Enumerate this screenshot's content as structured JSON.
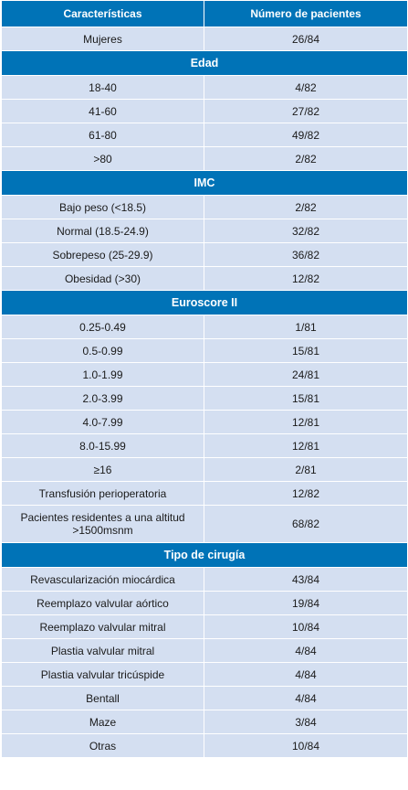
{
  "header": {
    "col1": "Características",
    "col2": "Número de pacientes"
  },
  "rows": [
    {
      "type": "row",
      "label": "Mujeres",
      "value": "26/84"
    },
    {
      "type": "section",
      "label": "Edad"
    },
    {
      "type": "row",
      "label": "18-40",
      "value": "4/82"
    },
    {
      "type": "row",
      "label": "41-60",
      "value": "27/82"
    },
    {
      "type": "row",
      "label": "61-80",
      "value": "49/82"
    },
    {
      "type": "row",
      "label": ">80",
      "value": "2/82"
    },
    {
      "type": "section",
      "label": "IMC"
    },
    {
      "type": "row",
      "label": "Bajo peso (<18.5)",
      "value": "2/82"
    },
    {
      "type": "row",
      "label": "Normal (18.5-24.9)",
      "value": "32/82"
    },
    {
      "type": "row",
      "label": "Sobrepeso (25-29.9)",
      "value": "36/82"
    },
    {
      "type": "row",
      "label": "Obesidad (>30)",
      "value": "12/82"
    },
    {
      "type": "section",
      "label": "Euroscore II"
    },
    {
      "type": "row",
      "label": "0.25-0.49",
      "value": "1/81"
    },
    {
      "type": "row",
      "label": "0.5-0.99",
      "value": "15/81"
    },
    {
      "type": "row",
      "label": "1.0-1.99",
      "value": "24/81"
    },
    {
      "type": "row",
      "label": "2.0-3.99",
      "value": "15/81"
    },
    {
      "type": "row",
      "label": "4.0-7.99",
      "value": "12/81"
    },
    {
      "type": "row",
      "label": "8.0-15.99",
      "value": "12/81"
    },
    {
      "type": "row",
      "label": "≥16",
      "value": "2/81"
    },
    {
      "type": "row",
      "label": "Transfusión perioperatoria",
      "value": "12/82"
    },
    {
      "type": "row",
      "label": "Pacientes residentes a una altitud >1500msnm",
      "value": "68/82",
      "tall": true
    },
    {
      "type": "section",
      "label": "Tipo de cirugía"
    },
    {
      "type": "row",
      "label": "Revascularización miocárdica",
      "value": "43/84"
    },
    {
      "type": "row",
      "label": "Reemplazo valvular aórtico",
      "value": "19/84"
    },
    {
      "type": "row",
      "label": "Reemplazo valvular mitral",
      "value": "10/84"
    },
    {
      "type": "row",
      "label": "Plastia valvular mitral",
      "value": "4/84"
    },
    {
      "type": "row",
      "label": "Plastia valvular tricúspide",
      "value": "4/84"
    },
    {
      "type": "row",
      "label": "Bentall",
      "value": "4/84"
    },
    {
      "type": "row",
      "label": "Maze",
      "value": "3/84"
    },
    {
      "type": "row",
      "label": "Otras",
      "value": "10/84"
    }
  ]
}
